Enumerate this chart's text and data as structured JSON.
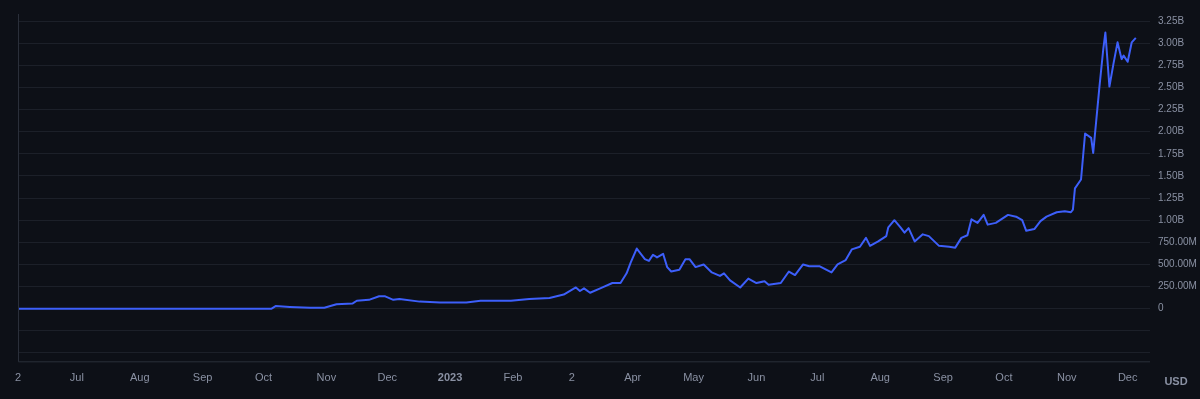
{
  "chart_data": {
    "type": "line",
    "ylabel": "USD",
    "x": [
      "2022-06-02",
      "2022-10-05",
      "2022-10-07",
      "2022-10-14",
      "2022-10-24",
      "2022-10-31",
      "2022-11-06",
      "2022-11-14",
      "2022-11-16",
      "2022-11-22",
      "2022-11-27",
      "2022-11-30",
      "2022-12-04",
      "2022-12-07",
      "2022-12-17",
      "2022-12-27",
      "2023-01-09",
      "2023-01-16",
      "2023-01-31",
      "2023-02-09",
      "2023-02-19",
      "2023-02-26",
      "2023-03-04",
      "2023-03-06",
      "2023-03-08",
      "2023-03-11",
      "2023-03-16",
      "2023-03-22",
      "2023-03-26",
      "2023-03-29",
      "2023-03-31",
      "2023-04-03",
      "2023-04-07",
      "2023-04-09",
      "2023-04-11",
      "2023-04-13",
      "2023-04-16",
      "2023-04-18",
      "2023-04-20",
      "2023-04-24",
      "2023-04-27",
      "2023-04-29",
      "2023-05-02",
      "2023-05-06",
      "2023-05-10",
      "2023-05-14",
      "2023-05-16",
      "2023-05-19",
      "2023-05-24",
      "2023-05-28",
      "2023-06-01",
      "2023-06-05",
      "2023-06-07",
      "2023-06-13",
      "2023-06-17",
      "2023-06-20",
      "2023-06-24",
      "2023-06-27",
      "2023-07-02",
      "2023-07-08",
      "2023-07-11",
      "2023-07-15",
      "2023-07-18",
      "2023-07-22",
      "2023-07-25",
      "2023-07-27",
      "2023-07-31",
      "2023-08-04",
      "2023-08-05",
      "2023-08-08",
      "2023-08-11",
      "2023-08-13",
      "2023-08-15",
      "2023-08-18",
      "2023-08-22",
      "2023-08-25",
      "2023-08-30",
      "2023-09-04",
      "2023-09-07",
      "2023-09-10",
      "2023-09-13",
      "2023-09-15",
      "2023-09-18",
      "2023-09-21",
      "2023-09-23",
      "2023-09-27",
      "2023-10-03",
      "2023-10-07",
      "2023-10-10",
      "2023-10-12",
      "2023-10-16",
      "2023-10-19",
      "2023-10-22",
      "2023-10-27",
      "2023-10-31",
      "2023-11-03",
      "2023-11-04",
      "2023-11-05",
      "2023-11-08",
      "2023-11-10",
      "2023-11-13",
      "2023-11-14",
      "2023-11-17",
      "2023-11-19",
      "2023-11-20",
      "2023-11-22",
      "2023-11-24",
      "2023-11-26",
      "2023-11-28",
      "2023-11-29",
      "2023-12-01",
      "2023-12-03",
      "2023-12-05"
    ],
    "series": [
      {
        "color": "#3d5ffa",
        "values": [
          0,
          0,
          30000000,
          20000000,
          10000000,
          10000000,
          50000000,
          60000000,
          90000000,
          100000000,
          140000000,
          140000000,
          100000000,
          110000000,
          80000000,
          70000000,
          70000000,
          90000000,
          90000000,
          110000000,
          120000000,
          160000000,
          240000000,
          200000000,
          230000000,
          180000000,
          230000000,
          290000000,
          290000000,
          400000000,
          520000000,
          680000000,
          560000000,
          540000000,
          610000000,
          580000000,
          620000000,
          470000000,
          420000000,
          440000000,
          560000000,
          560000000,
          470000000,
          500000000,
          410000000,
          370000000,
          400000000,
          320000000,
          240000000,
          340000000,
          290000000,
          310000000,
          270000000,
          290000000,
          420000000,
          380000000,
          500000000,
          480000000,
          480000000,
          410000000,
          500000000,
          550000000,
          670000000,
          700000000,
          800000000,
          710000000,
          760000000,
          820000000,
          920000000,
          1000000000,
          920000000,
          860000000,
          910000000,
          760000000,
          840000000,
          820000000,
          710000000,
          700000000,
          690000000,
          800000000,
          830000000,
          1010000000,
          970000000,
          1060000000,
          950000000,
          970000000,
          1060000000,
          1040000000,
          1000000000,
          880000000,
          900000000,
          990000000,
          1040000000,
          1090000000,
          1100000000,
          1090000000,
          1120000000,
          1360000000,
          1460000000,
          1980000000,
          1930000000,
          1760000000,
          2490000000,
          2940000000,
          3120000000,
          2510000000,
          2770000000,
          3010000000,
          2820000000,
          2860000000,
          2790000000,
          3010000000,
          3060000000
        ]
      }
    ],
    "xlim": [
      "2022-06-02",
      "2023-12-12"
    ],
    "xticks": [
      {
        "value": "2022-06-02",
        "label": "2"
      },
      {
        "value": "2022-07-01",
        "label": "Jul"
      },
      {
        "value": "2022-08-01",
        "label": "Aug"
      },
      {
        "value": "2022-09-01",
        "label": "Sep"
      },
      {
        "value": "2022-10-01",
        "label": "Oct"
      },
      {
        "value": "2022-11-01",
        "label": "Nov"
      },
      {
        "value": "2022-12-01",
        "label": "Dec"
      },
      {
        "value": "2023-01-01",
        "label": "2023"
      },
      {
        "value": "2023-02-01",
        "label": "Feb"
      },
      {
        "value": "2023-03-02",
        "label": "2"
      },
      {
        "value": "2023-04-01",
        "label": "Apr"
      },
      {
        "value": "2023-05-01",
        "label": "May"
      },
      {
        "value": "2023-06-01",
        "label": "Jun"
      },
      {
        "value": "2023-07-01",
        "label": "Jul"
      },
      {
        "value": "2023-08-01",
        "label": "Aug"
      },
      {
        "value": "2023-09-01",
        "label": "Sep"
      },
      {
        "value": "2023-10-01",
        "label": "Oct"
      },
      {
        "value": "2023-11-01",
        "label": "Nov"
      },
      {
        "value": "2023-12-01",
        "label": "Dec"
      }
    ],
    "ylim": [
      -600000000,
      3330000000
    ],
    "yticks": [
      {
        "value": -500000000,
        "label": null
      },
      {
        "value": -250000000,
        "label": null
      },
      {
        "value": 0,
        "label": "0"
      },
      {
        "value": 250000000,
        "label": "250.00M"
      },
      {
        "value": 500000000,
        "label": "500.00M"
      },
      {
        "value": 750000000,
        "label": "750.00M"
      },
      {
        "value": 1000000000,
        "label": "1.00B"
      },
      {
        "value": 1250000000,
        "label": "1.25B"
      },
      {
        "value": 1500000000,
        "label": "1.50B"
      },
      {
        "value": 1750000000,
        "label": "1.75B"
      },
      {
        "value": 2000000000,
        "label": "2.00B"
      },
      {
        "value": 2250000000,
        "label": "2.25B"
      },
      {
        "value": 2500000000,
        "label": "2.50B"
      },
      {
        "value": 2750000000,
        "label": "2.75B"
      },
      {
        "value": 3000000000,
        "label": "3.00B"
      },
      {
        "value": 3250000000,
        "label": "3.25B"
      }
    ],
    "grid": "y",
    "legend": false,
    "marker": "none",
    "line_style": "solid"
  }
}
